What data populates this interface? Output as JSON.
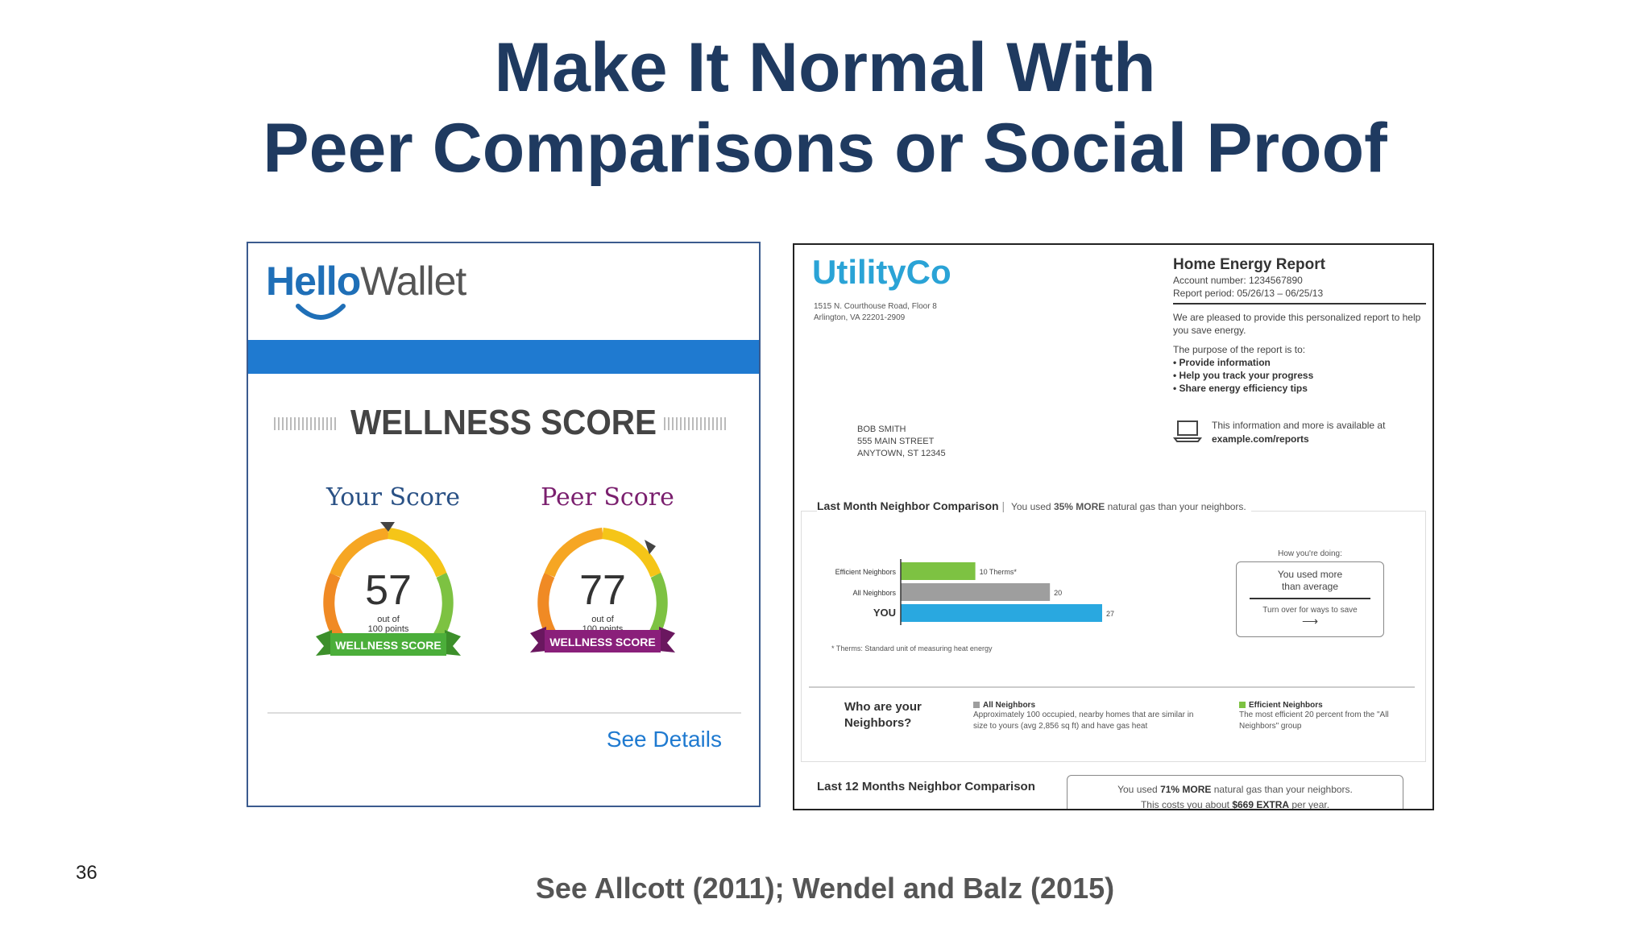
{
  "slide": {
    "title_line1": "Make It Normal With",
    "title_line2": "Peer Comparisons or Social Proof",
    "slide_number": "36",
    "citation": "See Allcott (2011); Wendel and Balz (2015)"
  },
  "hellowallet": {
    "logo_hello": "Hello",
    "logo_wallet": "Wallet",
    "heading": "WELLNESS SCORE",
    "your_score_label": "Your Score",
    "peer_score_label": "Peer Score",
    "your_score": "57",
    "peer_score": "77",
    "score_caption_1": "out of",
    "score_caption_2": "100 points",
    "ribbon_text": "WELLNESS SCORE",
    "see_details": "See Details",
    "your_score_value": 57,
    "peer_score_value": 77,
    "colors": {
      "blue": "#1f7ad0",
      "green": "#4bae3a",
      "purple": "#8a1f7a"
    }
  },
  "utilityco": {
    "logo": "UtilityCo",
    "address_1": "1515 N. Courthouse Road, Floor 8",
    "address_2": "Arlington, VA 22201-2909",
    "recipient_1": "BOB SMITH",
    "recipient_2": "555 MAIN STREET",
    "recipient_3": "ANYTOWN, ST 12345",
    "report_title": "Home Energy Report",
    "account_number": "Account number: 1234567890",
    "report_period": "Report period: 05/26/13 – 06/25/13",
    "intro": "We are pleased to provide this personalized report to help you save energy.",
    "purpose": "The purpose of the report is to:",
    "bullets": [
      "• Provide information",
      "• Help you track your progress",
      "• Share energy efficiency tips"
    ],
    "online_text": "This information and more is available at",
    "online_url": "example.com/reports",
    "comparison_title": "Last Month Neighbor Comparison",
    "comparison_sub_pre": "You used ",
    "comparison_sub_bold": "35% MORE",
    "comparison_sub_post": " natural gas than your neighbors.",
    "footnote": "* Therms: Standard unit of measuring heat energy",
    "how_label": "How you're doing:",
    "how_main_1": "You used more",
    "how_main_2": "than average",
    "how_sub": "Turn over for ways to save",
    "who_1": "Who are your",
    "who_2": "Neighbors?",
    "all_nb_head": "All Neighbors",
    "all_nb_desc": "Approximately 100 occupied, nearby homes that are similar in size to yours (avg 2,856 sq ft) and have gas heat",
    "eff_nb_head": "Efficient Neighbors",
    "eff_nb_desc": "The most efficient 20 percent from the \"All Neighbors\" group",
    "l12_title": "Last 12 Months Neighbor Comparison",
    "l12_line1_pre": "You used ",
    "l12_line1_bold": "71% MORE",
    "l12_line1_post": " natural gas than your neighbors.",
    "l12_line2_pre": "This costs you about ",
    "l12_line2_bold": "$669 EXTRA",
    "l12_line2_post": " per year."
  },
  "chart_data": {
    "type": "bar",
    "orientation": "horizontal",
    "categories": [
      "Efficient Neighbors",
      "All Neighbors",
      "YOU"
    ],
    "values": [
      10,
      20,
      27
    ],
    "data_labels": [
      "10 Therms*",
      "20",
      "27"
    ],
    "colors": [
      "#7dc242",
      "#9e9e9e",
      "#29a8e0"
    ],
    "unit": "Therms"
  }
}
